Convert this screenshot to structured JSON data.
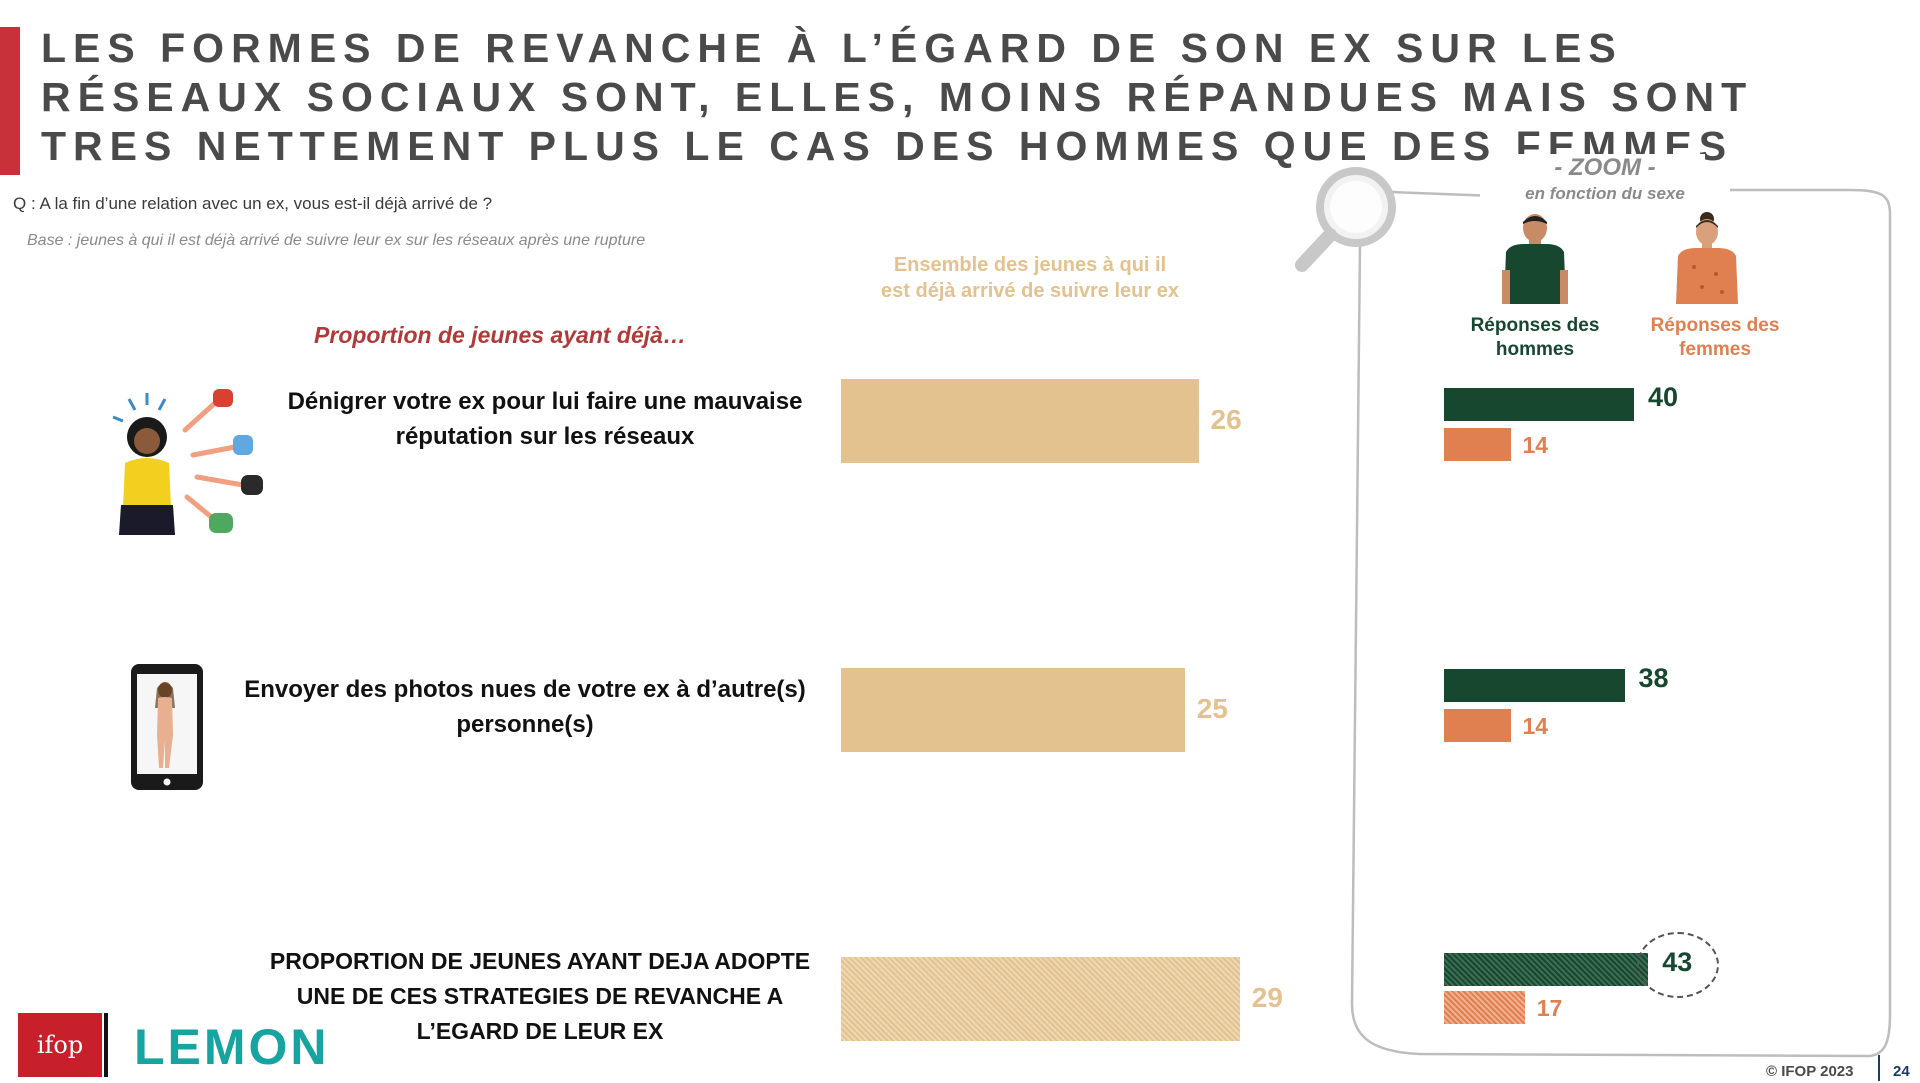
{
  "title": "LES FORMES DE REVANCHE À L’ÉGARD DE SON EX SUR LES RÉSEAUX SOCIAUX SONT, ELLES, MOINS RÉPANDUES MAIS SONT TRES NETTEMENT PLUS LE CAS DES HOMMES QUE DES FEMMES",
  "question": "Q : A la fin d’une relation avec un ex, vous est-il déjà arrivé de ?",
  "base": "Base : jeunes à qui il est déjà arrivé de suivre leur ex sur les réseaux après une rupture",
  "proportion_heading": "Proportion de jeunes ayant déjà…",
  "overall_header": "Ensemble des jeunes à qui il est déjà arrivé de suivre leur ex",
  "zoom": {
    "title": "- ZOOM -",
    "subtitle": "en fonction du sexe",
    "men_label": "Réponses des hommes",
    "women_label": "Réponses des femmes"
  },
  "colors": {
    "overall": "#e3c28f",
    "men": "#18472f",
    "women": "#e07f50",
    "title_accent": "#c8303a"
  },
  "icons": [
    "pointing-hands-icon",
    "smartphone-photo-icon",
    "magnifier-icon",
    "man-icon",
    "woman-icon"
  ],
  "chart_data": {
    "type": "bar",
    "orientation": "horizontal",
    "categories": [
      "Dénigrer votre ex pour lui faire une mauvaise réputation sur les réseaux",
      "Envoyer des photos nues de votre ex à d’autre(s) personne(s)",
      "PROPORTION DE JEUNES AYANT DEJA ADOPTE UNE DE CES STRATEGIES DE REVANCHE A L’EGARD DE LEUR EX"
    ],
    "series": [
      {
        "name": "Ensemble des jeunes à qui il est déjà arrivé de suivre leur ex",
        "values": [
          26,
          25,
          29
        ]
      },
      {
        "name": "Réponses des hommes",
        "values": [
          40,
          38,
          43
        ]
      },
      {
        "name": "Réponses des femmes",
        "values": [
          14,
          14,
          17
        ]
      }
    ],
    "unit": "%",
    "highlighted_category_index": 2
  },
  "footer": {
    "ifop_logo": "ifop",
    "lemon_logo": "LEMON",
    "copyright": "© IFOP 2023",
    "page_number": "24"
  }
}
